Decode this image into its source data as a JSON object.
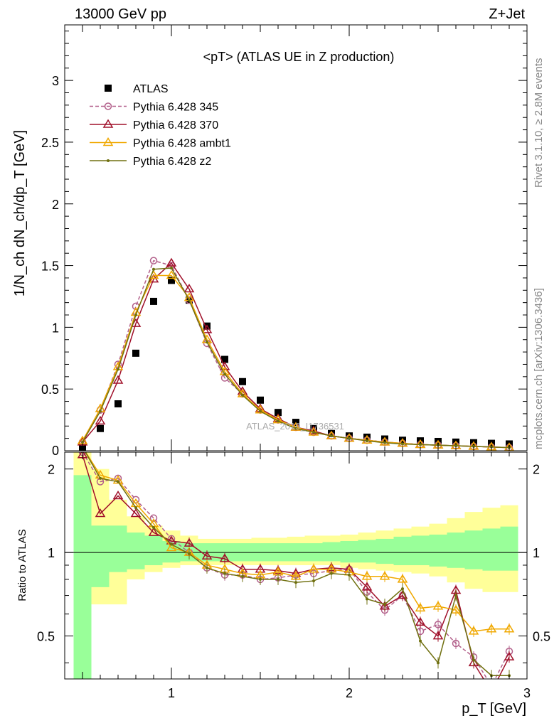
{
  "header": {
    "left": "13000 GeV pp",
    "right": "Z+Jet"
  },
  "side_labels": {
    "rivet": "Rivet 3.1.10, ≥ 2.8M events",
    "mcplots": "mcplots.cern.ch [arXiv:1306.3436]"
  },
  "watermark": "ATLAS_2019_I1736531",
  "chart_data": [
    {
      "type": "line",
      "title": "<pT> (ATLAS UE in Z production)",
      "ylabel": "1/N_ch dN_ch/dp_T [GeV]",
      "xlim": [
        0.4,
        3.0
      ],
      "ylim": [
        0,
        3.45
      ],
      "yticks": [
        "0.5",
        "1",
        "1.5",
        "2",
        "2.5",
        "3"
      ],
      "x": [
        0.5,
        0.6,
        0.7,
        0.8,
        0.9,
        1.0,
        1.1,
        1.2,
        1.3,
        1.4,
        1.5,
        1.6,
        1.7,
        1.8,
        1.9,
        2.0,
        2.1,
        2.2,
        2.3,
        2.4,
        2.5,
        2.6,
        2.7,
        2.8,
        2.9
      ],
      "series": [
        {
          "name": "ATLAS",
          "kind": "data",
          "color": "#000000",
          "marker": "square",
          "values": [
            0.03,
            0.18,
            0.38,
            0.79,
            1.21,
            1.38,
            1.22,
            1.01,
            0.74,
            0.56,
            0.41,
            0.31,
            0.23,
            0.18,
            0.14,
            0.12,
            0.11,
            0.095,
            0.085,
            0.08,
            0.075,
            0.07,
            0.065,
            0.06,
            0.055
          ]
        },
        {
          "name": "Pythia 6.428 345",
          "kind": "mc",
          "color": "#b25f8a",
          "marker": "circle",
          "dash": true,
          "values": [
            0.07,
            0.33,
            0.7,
            1.17,
            1.54,
            1.5,
            1.22,
            0.87,
            0.59,
            0.46,
            0.33,
            0.25,
            0.19,
            0.15,
            0.12,
            0.1,
            0.085,
            0.07,
            0.06,
            0.05,
            0.045,
            0.04,
            0.035,
            0.03,
            0.025
          ]
        },
        {
          "name": "Pythia 6.428 370",
          "kind": "mc",
          "color": "#a0102a",
          "marker": "triangle",
          "values": [
            0.07,
            0.24,
            0.57,
            1.03,
            1.39,
            1.52,
            1.31,
            0.98,
            0.68,
            0.48,
            0.34,
            0.26,
            0.19,
            0.16,
            0.12,
            0.1,
            0.085,
            0.07,
            0.06,
            0.05,
            0.045,
            0.04,
            0.035,
            0.03,
            0.025
          ]
        },
        {
          "name": "Pythia 6.428 ambt1",
          "kind": "mc",
          "color": "#f0a800",
          "marker": "triangle",
          "values": [
            0.08,
            0.34,
            0.68,
            1.12,
            1.42,
            1.42,
            1.24,
            0.9,
            0.64,
            0.46,
            0.33,
            0.25,
            0.19,
            0.15,
            0.12,
            0.1,
            0.085,
            0.07,
            0.06,
            0.05,
            0.045,
            0.04,
            0.035,
            0.03,
            0.025
          ]
        },
        {
          "name": "Pythia 6.428 z2",
          "kind": "mc",
          "color": "#707010",
          "marker": "dot",
          "values": [
            0.07,
            0.32,
            0.66,
            1.1,
            1.47,
            1.48,
            1.22,
            0.88,
            0.62,
            0.45,
            0.32,
            0.24,
            0.18,
            0.15,
            0.12,
            0.1,
            0.08,
            0.065,
            0.055,
            0.05,
            0.045,
            0.04,
            0.035,
            0.03,
            0.025
          ]
        }
      ]
    },
    {
      "type": "line",
      "ylabel": "Ratio to ATLAS",
      "xlabel": "p_T [GeV]",
      "xlim": [
        0.4,
        3.0
      ],
      "ylim": [
        0.35,
        2.3
      ],
      "xticks": [
        "1",
        "2",
        "3"
      ],
      "yticks": [
        "0.5",
        "1",
        "2"
      ],
      "x": [
        0.5,
        0.6,
        0.7,
        0.8,
        0.9,
        1.0,
        1.1,
        1.2,
        1.3,
        1.4,
        1.5,
        1.6,
        1.7,
        1.8,
        1.9,
        2.0,
        2.1,
        2.2,
        2.3,
        2.4,
        2.5,
        2.6,
        2.7,
        2.8,
        2.9
      ],
      "band_yellow": [
        [
          0.2,
          2.3
        ],
        [
          0.65,
          2.0
        ],
        [
          0.65,
          1.55
        ],
        [
          0.8,
          1.35
        ],
        [
          0.85,
          1.25
        ],
        [
          0.88,
          1.2
        ],
        [
          0.9,
          1.15
        ],
        [
          0.9,
          1.12
        ],
        [
          0.9,
          1.12
        ],
        [
          0.9,
          1.12
        ],
        [
          0.9,
          1.13
        ],
        [
          0.9,
          1.13
        ],
        [
          0.9,
          1.14
        ],
        [
          0.9,
          1.15
        ],
        [
          0.9,
          1.15
        ],
        [
          0.88,
          1.16
        ],
        [
          0.87,
          1.18
        ],
        [
          0.86,
          1.2
        ],
        [
          0.85,
          1.22
        ],
        [
          0.84,
          1.24
        ],
        [
          0.82,
          1.27
        ],
        [
          0.78,
          1.33
        ],
        [
          0.74,
          1.4
        ],
        [
          0.72,
          1.45
        ],
        [
          0.72,
          1.48
        ]
      ],
      "band_green": [
        [
          0.2,
          1.9
        ],
        [
          0.75,
          1.25
        ],
        [
          0.85,
          1.25
        ],
        [
          0.87,
          1.18
        ],
        [
          0.9,
          1.15
        ],
        [
          0.92,
          1.1
        ],
        [
          0.93,
          1.08
        ],
        [
          0.93,
          1.08
        ],
        [
          0.93,
          1.08
        ],
        [
          0.93,
          1.08
        ],
        [
          0.93,
          1.08
        ],
        [
          0.93,
          1.08
        ],
        [
          0.93,
          1.08
        ],
        [
          0.93,
          1.08
        ],
        [
          0.93,
          1.09
        ],
        [
          0.92,
          1.1
        ],
        [
          0.92,
          1.11
        ],
        [
          0.91,
          1.12
        ],
        [
          0.9,
          1.14
        ],
        [
          0.9,
          1.15
        ],
        [
          0.89,
          1.16
        ],
        [
          0.88,
          1.18
        ],
        [
          0.87,
          1.2
        ],
        [
          0.86,
          1.22
        ],
        [
          0.86,
          1.24
        ]
      ],
      "series": [
        {
          "name": "Pythia 6.428 345",
          "color": "#b25f8a",
          "marker": "circle",
          "dash": true,
          "values": [
            2.3,
            1.8,
            1.85,
            1.55,
            1.33,
            1.12,
            1.0,
            0.88,
            0.83,
            0.83,
            0.8,
            0.81,
            0.83,
            0.84,
            0.86,
            0.87,
            0.72,
            0.62,
            0.7,
            0.52,
            0.55,
            0.47,
            0.42,
            0.33,
            0.44
          ]
        },
        {
          "name": "Pythia 6.428 370",
          "color": "#a0102a",
          "marker": "triangle",
          "values": [
            2.25,
            1.38,
            1.6,
            1.38,
            1.18,
            1.1,
            1.08,
            0.97,
            0.95,
            0.87,
            0.87,
            0.86,
            0.84,
            0.87,
            0.88,
            0.87,
            0.75,
            0.64,
            0.7,
            0.56,
            0.5,
            0.73,
            0.4,
            0.3,
            0.42
          ]
        },
        {
          "name": "Pythia 6.428 ambt1",
          "color": "#f0a800",
          "marker": "triangle",
          "values": [
            2.4,
            1.9,
            1.82,
            1.5,
            1.27,
            1.04,
            1.0,
            0.9,
            0.87,
            0.84,
            0.83,
            0.85,
            0.82,
            0.87,
            0.87,
            0.85,
            0.82,
            0.82,
            0.8,
            0.63,
            0.64,
            0.62,
            0.52,
            0.53,
            0.53
          ]
        },
        {
          "name": "Pythia 6.428 z2",
          "color": "#707010",
          "marker": "dot",
          "values": [
            2.4,
            1.85,
            1.8,
            1.45,
            1.23,
            1.07,
            0.99,
            0.88,
            0.84,
            0.82,
            0.8,
            0.8,
            0.78,
            0.79,
            0.84,
            0.83,
            0.68,
            0.65,
            0.74,
            0.48,
            0.4,
            0.7,
            0.41,
            0.36,
            0.36
          ]
        }
      ]
    }
  ]
}
